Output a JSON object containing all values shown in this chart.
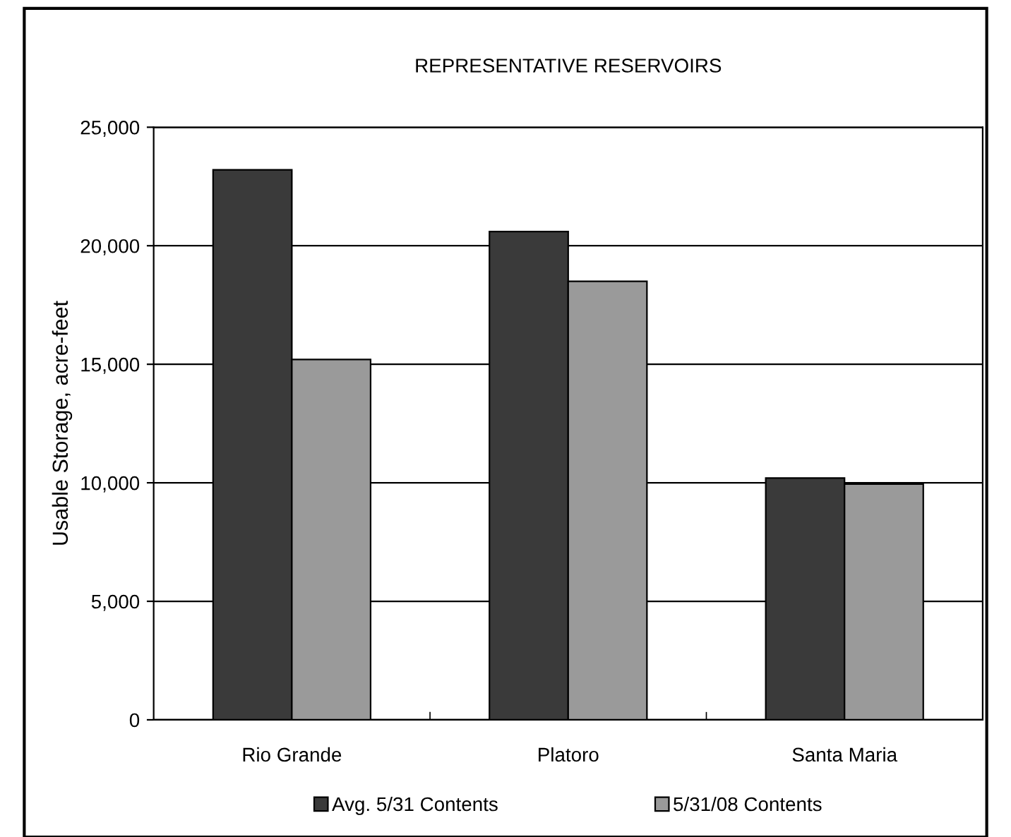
{
  "chart_data": {
    "type": "bar",
    "title": "REPRESENTATIVE RESERVOIRS",
    "ylabel": "Usable Storage, acre-feet",
    "categories": [
      "Rio Grande",
      "Platoro",
      "Santa Maria"
    ],
    "series": [
      {
        "name": "Avg. 5/31 Contents",
        "color": "#3a3a3a",
        "values": [
          23200,
          20600,
          10200
        ]
      },
      {
        "name": "5/31/08 Contents",
        "color": "#9a9a9a",
        "values": [
          15200,
          18500,
          9950
        ]
      }
    ],
    "ylim": [
      0,
      25000
    ],
    "yticks": [
      {
        "value": 0,
        "label": "0"
      },
      {
        "value": 5000,
        "label": "5,000"
      },
      {
        "value": 10000,
        "label": "10,000"
      },
      {
        "value": 15000,
        "label": "15,000"
      },
      {
        "value": 20000,
        "label": "20,000"
      },
      {
        "value": 25000,
        "label": "25,000"
      }
    ],
    "grid": "y",
    "legend": "bottom"
  }
}
